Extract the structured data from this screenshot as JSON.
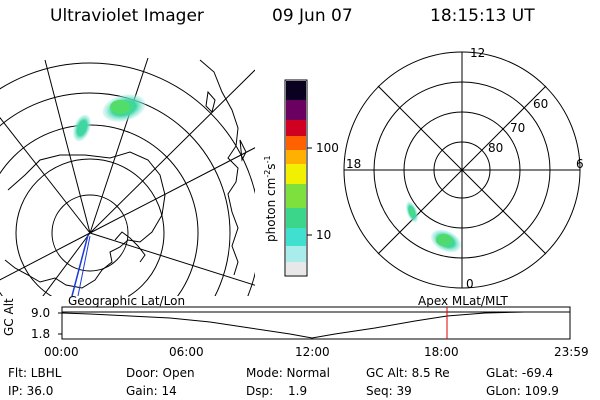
{
  "header": {
    "instrument": "Ultraviolet Imager",
    "date": "09 Jun 07",
    "time": "18:15:13 UT"
  },
  "colorbar": {
    "unit_label": "photon cm",
    "unit_exp1": "-2",
    "unit_s": "s",
    "unit_exp2": "-1",
    "ticks": [
      "100",
      "10"
    ],
    "colors": [
      "#e8e8e8",
      "#40e0d0",
      "#3cd68a",
      "#7ee03c",
      "#f0f000",
      "#ffa000",
      "#e00000",
      "#a0005a",
      "#400050",
      "#000000"
    ]
  },
  "left_panel": {
    "label": "Geographic Lat/Lon",
    "aurora_color": "#40e070"
  },
  "right_panel": {
    "label": "Apex  MLat/MLT",
    "mlt_labels": {
      "top": "12",
      "left": "18",
      "right": "6",
      "bottom": "0"
    },
    "lat_labels": [
      "60",
      "70",
      "80"
    ]
  },
  "altitude_plot": {
    "ylabel": "GC Alt",
    "yticks": [
      "9.0",
      "1.8"
    ],
    "xticks": [
      "00:00",
      "06:00",
      "12:00",
      "18:00",
      "23:59"
    ],
    "marker_color": "#e00000"
  },
  "info": {
    "filter": "Flt: LBHL",
    "door": "Door: Open",
    "mode": "Mode: Normal",
    "gc_alt": "GC Alt: 8.5 Re",
    "glat": "GLat: -69.4",
    "ip": "IP: 36.0",
    "gain": "Gain: 14",
    "dsp_label": "Dsp:",
    "dsp_value": "1.9",
    "seq": "Seq: 39",
    "glon": "GLon: 109.9"
  }
}
